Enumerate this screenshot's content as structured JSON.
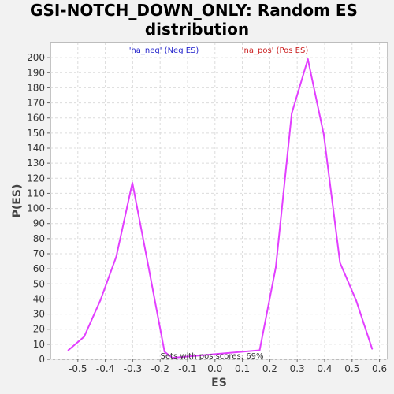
{
  "chart_data": {
    "type": "line",
    "title_line1": "GSI-NOTCH_DOWN_ONLY: Random ES",
    "title_line2": "distribution",
    "xlabel": "ES",
    "ylabel": "P(ES)",
    "xlim": [
      -0.6,
      0.63
    ],
    "ylim": [
      0,
      210
    ],
    "x_ticks": [
      -0.5,
      -0.4,
      -0.3,
      -0.2,
      -0.1,
      0.0,
      0.1,
      0.2,
      0.3,
      0.4,
      0.5,
      0.6
    ],
    "x_tick_labels": [
      "-0.5",
      "-0.4",
      "-0.3",
      "-0.2",
      "-0.1",
      "0.0",
      "0.1",
      "0.2",
      "0.3",
      "0.4",
      "0.5",
      "0.6"
    ],
    "y_ticks": [
      0,
      10,
      20,
      30,
      40,
      50,
      60,
      70,
      80,
      90,
      100,
      110,
      120,
      130,
      140,
      150,
      160,
      170,
      180,
      190,
      200
    ],
    "y_tick_labels": [
      "0",
      "10",
      "20",
      "30",
      "40",
      "50",
      "60",
      "70",
      "80",
      "90",
      "100",
      "110",
      "120",
      "130",
      "140",
      "150",
      "160",
      "170",
      "180",
      "190",
      "200"
    ],
    "grid": true,
    "series": [
      {
        "name": "Random ES",
        "color": "#e23fff",
        "x": [
          -0.535,
          -0.477,
          -0.418,
          -0.36,
          -0.301,
          -0.243,
          -0.184,
          -0.155,
          0.163,
          0.222,
          0.28,
          0.339,
          0.397,
          0.456,
          0.515,
          0.573
        ],
        "y": [
          6,
          15,
          39,
          68,
          117,
          62,
          5,
          1,
          6,
          61,
          163,
          199,
          149,
          64,
          39,
          7
        ]
      }
    ],
    "annotations": {
      "neg_label": "'na_neg' (Neg ES)",
      "neg_color": "#2222cc",
      "pos_label": "'na_pos' (Pos ES)",
      "pos_color": "#cc2222",
      "footnote": "Sets with pos scores: 69%"
    }
  }
}
